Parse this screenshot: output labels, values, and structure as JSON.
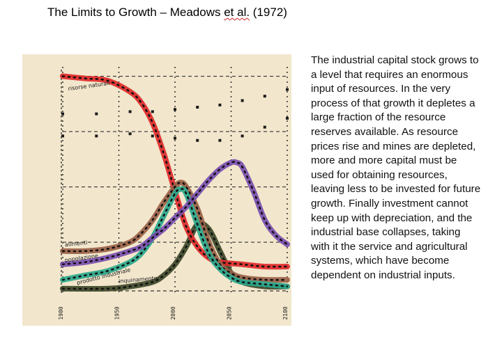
{
  "title": {
    "before": "The Limits to Growth – Meadows ",
    "etal": "et al.",
    "after": " (1972)"
  },
  "body_text": "The industrial capital stock grows to a level that requires an enormous input of resources. In the very process of that growth it depletes a large fraction of the resource reserves available. As resource prices rise and mines are depleted, more and more capital must be used for obtaining resources, leaving less to be invested for future growth. Finally investment cannot keep up with depreciation, and the industrial base collapses, taking with it the service and agricultural systems, which have become dependent on industrial inputs.",
  "chart_data": {
    "type": "line",
    "title": "",
    "xlabel": "",
    "ylabel": "",
    "xlim": [
      1900,
      2100
    ],
    "ylim": [
      0,
      1
    ],
    "x_ticks": [
      1900,
      1950,
      2000,
      2050,
      2100
    ],
    "grid": true,
    "background": "#f2e6cc",
    "series": [
      {
        "name": "risorse naturali",
        "color": "#e02a2a",
        "x": [
          1900,
          1920,
          1940,
          1960,
          1970,
          1980,
          1990,
          2000,
          2010,
          2020,
          2030,
          2040,
          2060,
          2080,
          2100
        ],
        "y": [
          0.97,
          0.96,
          0.95,
          0.9,
          0.85,
          0.76,
          0.62,
          0.45,
          0.29,
          0.2,
          0.15,
          0.13,
          0.12,
          0.11,
          0.11
        ]
      },
      {
        "name": "alimenti",
        "color": "#9a6248",
        "x": [
          1900,
          1920,
          1940,
          1960,
          1970,
          1980,
          1990,
          2000,
          2005,
          2010,
          2020,
          2030,
          2040,
          2050,
          2060,
          2080,
          2100
        ],
        "y": [
          0.18,
          0.18,
          0.19,
          0.22,
          0.26,
          0.32,
          0.4,
          0.47,
          0.49,
          0.47,
          0.37,
          0.22,
          0.12,
          0.08,
          0.06,
          0.05,
          0.05
        ]
      },
      {
        "name": "popolazione",
        "color": "#7b4fb0",
        "x": [
          1900,
          1920,
          1940,
          1960,
          1970,
          1980,
          1990,
          2000,
          2010,
          2020,
          2030,
          2040,
          2050,
          2055,
          2060,
          2070,
          2080,
          2090,
          2100
        ],
        "y": [
          0.12,
          0.13,
          0.15,
          0.18,
          0.2,
          0.24,
          0.28,
          0.33,
          0.38,
          0.44,
          0.5,
          0.55,
          0.58,
          0.58,
          0.56,
          0.45,
          0.32,
          0.25,
          0.21
        ]
      },
      {
        "name": "prodotto industriale",
        "color": "#2aa88c",
        "x": [
          1900,
          1920,
          1940,
          1960,
          1970,
          1980,
          1990,
          2000,
          2005,
          2010,
          2020,
          2030,
          2040,
          2050,
          2060,
          2080,
          2100
        ],
        "y": [
          0.05,
          0.07,
          0.09,
          0.13,
          0.17,
          0.24,
          0.34,
          0.44,
          0.46,
          0.44,
          0.3,
          0.17,
          0.1,
          0.06,
          0.04,
          0.03,
          0.02
        ]
      },
      {
        "name": "inquinamento",
        "color": "#3f4a2a",
        "x": [
          1900,
          1940,
          1960,
          1980,
          1990,
          2000,
          2010,
          2020,
          2030,
          2040,
          2050,
          2060,
          2080,
          2100
        ],
        "y": [
          0.01,
          0.01,
          0.02,
          0.04,
          0.07,
          0.12,
          0.2,
          0.3,
          0.28,
          0.18,
          0.08,
          0.04,
          0.02,
          0.02
        ]
      }
    ],
    "dotted_series": [
      {
        "x": [
          1900,
          1930,
          1960,
          1980,
          2000,
          2020,
          2040,
          2060,
          2080,
          2100
        ],
        "y": [
          0.8,
          0.8,
          0.81,
          0.81,
          0.82,
          0.83,
          0.84,
          0.86,
          0.88,
          0.91
        ]
      },
      {
        "x": [
          1900,
          1930,
          1960,
          1980,
          2000,
          2020,
          2040,
          2060,
          2080,
          2100
        ],
        "y": [
          0.7,
          0.7,
          0.71,
          0.7,
          0.69,
          0.68,
          0.68,
          0.7,
          0.74,
          0.78
        ]
      }
    ]
  }
}
